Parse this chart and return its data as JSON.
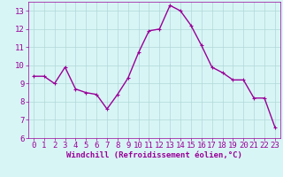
{
  "x": [
    0,
    1,
    2,
    3,
    4,
    5,
    6,
    7,
    8,
    9,
    10,
    11,
    12,
    13,
    14,
    15,
    16,
    17,
    18,
    19,
    20,
    21,
    22,
    23
  ],
  "y": [
    9.4,
    9.4,
    9.0,
    9.9,
    8.7,
    8.5,
    8.4,
    7.6,
    8.4,
    9.3,
    10.7,
    11.9,
    12.0,
    13.3,
    13.0,
    12.2,
    11.1,
    9.9,
    9.6,
    9.2,
    9.2,
    8.2,
    8.2,
    6.6
  ],
  "line_color": "#990099",
  "marker": "+",
  "marker_size": 3,
  "bg_color": "#d8f5f5",
  "grid_color": "#b0d8d8",
  "xlabel": "Windchill (Refroidissement éolien,°C)",
  "tick_color": "#990099",
  "ylim": [
    6,
    13.5
  ],
  "yticks": [
    6,
    7,
    8,
    9,
    10,
    11,
    12,
    13
  ],
  "xlim": [
    -0.5,
    23.5
  ],
  "line_width": 1.0,
  "font_size": 6.5,
  "xlabel_fontsize": 6.5
}
